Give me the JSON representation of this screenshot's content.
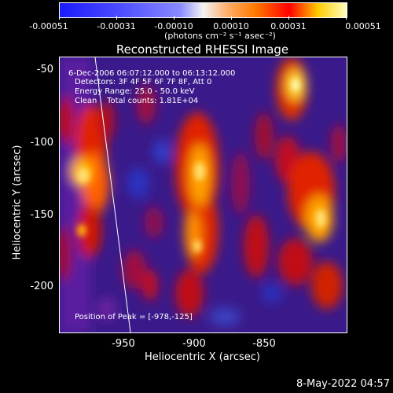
{
  "colorbar": {
    "tick_labels": [
      "-0.00051",
      "-0.00031",
      "-0.00010",
      "0.00010",
      "0.00031",
      "0.00051"
    ],
    "units": "(photons cm⁻² s⁻¹ asec⁻²)"
  },
  "title": "Reconstructed RHESSI Image",
  "annotations": {
    "time_range": "6-Dec-2006 06:07:12.000 to 06:13:12.000",
    "detectors": "Detectors: 3F 4F 5F 6F 7F 8F, Att 0",
    "energy": "Energy Range: 25.0 - 50.0 keV",
    "method_counts": "Clean    Total counts: 1.81E+04",
    "peak": "Position of Peak = [-978,-125]"
  },
  "axes": {
    "xlabel": "Heliocentric X (arcsec)",
    "ylabel": "Heliocentric Y (arcsec)",
    "x_ticks": [
      "-950",
      "-900",
      "-850"
    ],
    "y_ticks": [
      "-50",
      "-100",
      "-150",
      "-200"
    ]
  },
  "footer_date": "8-May-2022 04:57"
}
